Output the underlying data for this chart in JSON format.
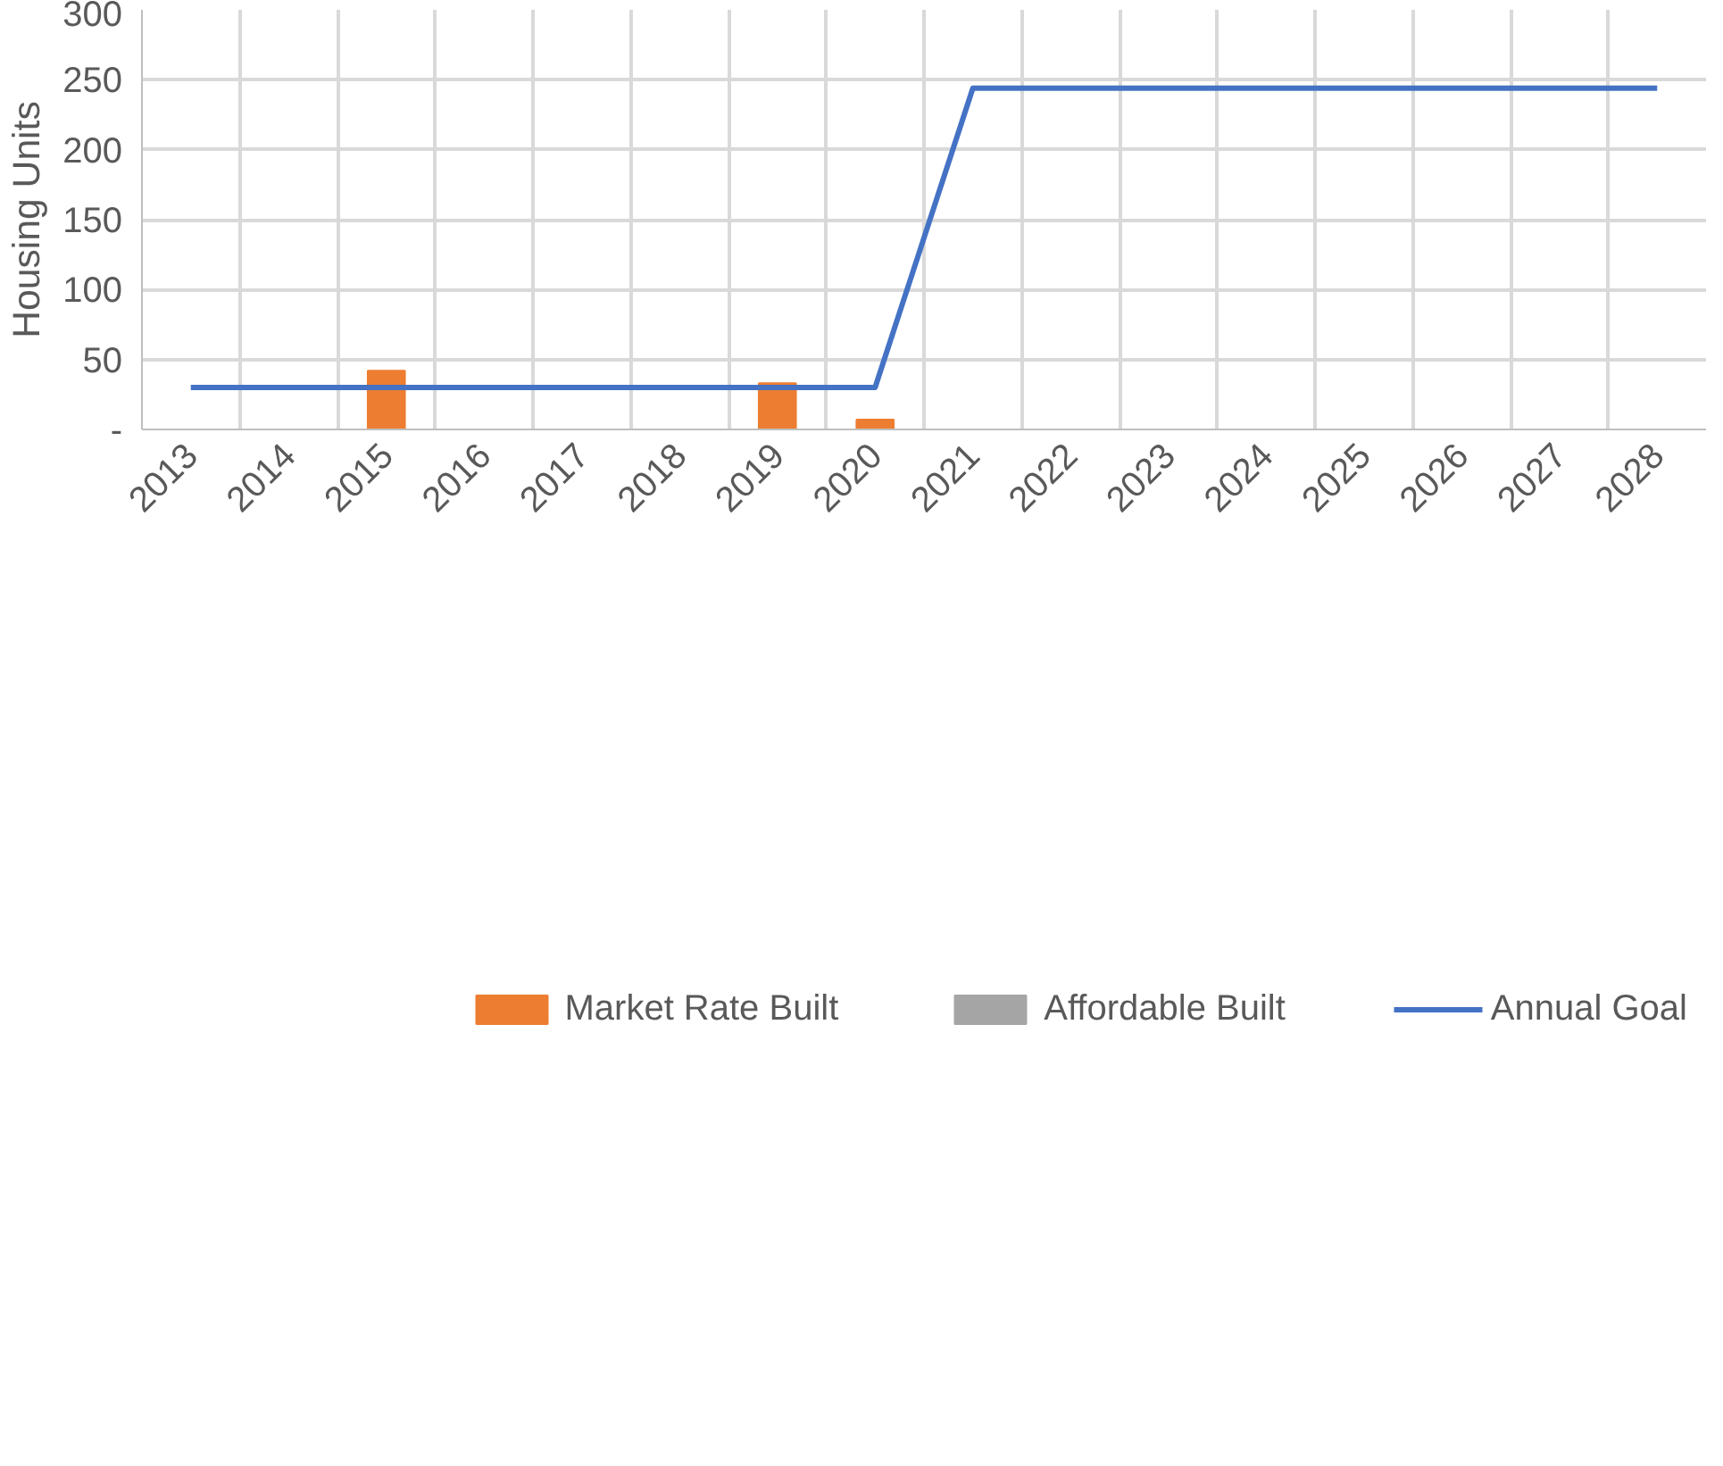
{
  "chart_data": {
    "type": "bar",
    "ylabel": "Housing Units",
    "categories": [
      "2013",
      "2014",
      "2015",
      "2016",
      "2017",
      "2018",
      "2019",
      "2020",
      "2021",
      "2022",
      "2023",
      "2024",
      "2025",
      "2026",
      "2027",
      "2028"
    ],
    "series": [
      {
        "name": "Market Rate Built",
        "color": "#ed7d31",
        "values": [
          0,
          null,
          42,
          null,
          null,
          null,
          33,
          7,
          null,
          null,
          null,
          null,
          null,
          null,
          null,
          null
        ]
      },
      {
        "name": "Affordable Built",
        "color": "#a5a5a5",
        "values": [
          null,
          null,
          null,
          null,
          null,
          0,
          null,
          null,
          null,
          null,
          null,
          null,
          null,
          null,
          null,
          null
        ]
      },
      {
        "name": "Annual Goal",
        "type": "line",
        "color": "#4472c4",
        "values": [
          30,
          30,
          30,
          30,
          30,
          30,
          30,
          30,
          244,
          244,
          244,
          244,
          244,
          244,
          244,
          244
        ]
      }
    ],
    "ylim": [
      0,
      300
    ],
    "yticks": [
      {
        "value": 0,
        "label": "-"
      },
      50,
      100,
      150,
      200,
      250,
      300
    ],
    "grid": true,
    "legend": "bottom"
  }
}
